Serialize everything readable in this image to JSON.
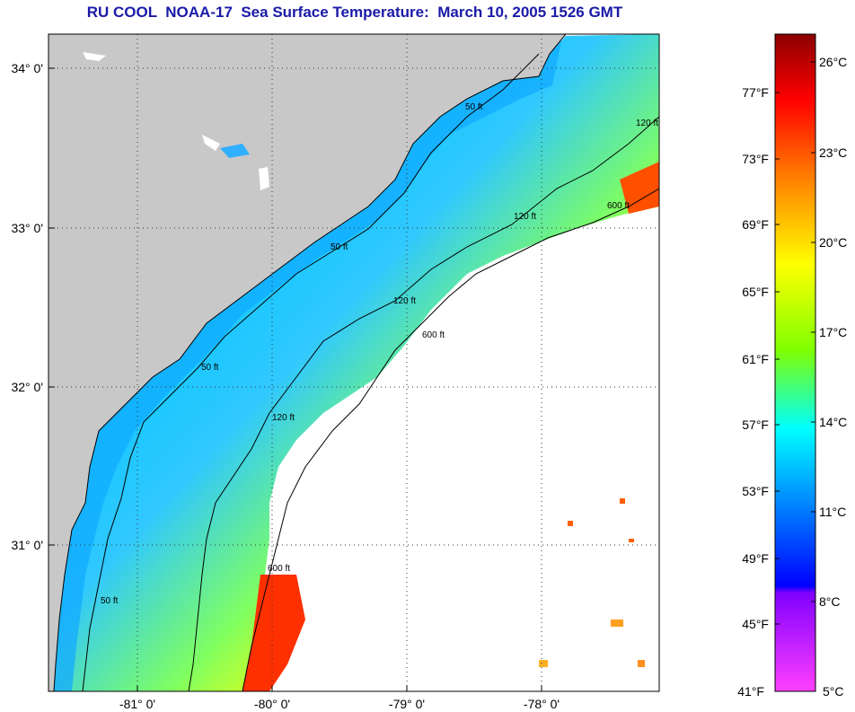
{
  "title": "RU COOL  NOAA-17  Sea Surface Temperature:  March 10, 2005 1526 GMT",
  "map": {
    "lon_labels": [
      "-81° 0'",
      "-80° 0'",
      "-79° 0'",
      "-78° 0'"
    ],
    "lat_labels": [
      "34° 0'",
      "33° 0'",
      "32° 0'",
      "31° 0'"
    ],
    "land_color": "#c8c8c8",
    "no_data_color": "#ffffff",
    "isobath_labels": [
      "50 ft",
      "120 ft",
      "600 ft"
    ],
    "grid": "dotted"
  },
  "colorbar": {
    "fahrenheit_labels": [
      "77°F",
      "73°F",
      "69°F",
      "65°F",
      "61°F",
      "57°F",
      "53°F",
      "49°F",
      "45°F",
      "41°F"
    ],
    "celsius_labels": [
      "26°C",
      "23°C",
      "20°C",
      "17°C",
      "14°C",
      "11°C",
      "8°C",
      "5°C"
    ],
    "colors": [
      "#8b0000",
      "#ff0000",
      "#ff8000",
      "#ffff00",
      "#80ff00",
      "#00ffff",
      "#0080ff",
      "#0000ff",
      "#8000ff",
      "#ff40ff"
    ]
  }
}
